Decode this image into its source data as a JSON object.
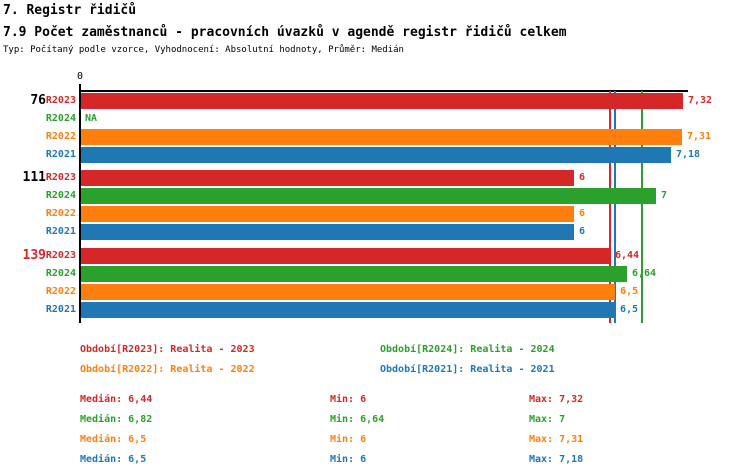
{
  "header": {
    "title": "7. Registr řidičů",
    "subtitle": "7.9 Počet zaměstnanců - pracovních úvazků v agendě registr řidičů celkem",
    "meta": "Typ: Počítaný podle vzorce, Vyhodnocení: Absolutní hodnoty, Průměr: Medián"
  },
  "chart_data": {
    "type": "bar",
    "orientation": "horizontal",
    "title": "7.9 Počet zaměstnanců - pracovních úvazků v agendě registr řidičů celkem",
    "axis_tick": "0",
    "xlim": [
      0,
      7.39
    ],
    "grid": false,
    "series_colors": {
      "R2023": "#d62728",
      "R2024": "#2ca02c",
      "R2022": "#ff7f0e",
      "R2021": "#1f77b4"
    },
    "groups": [
      {
        "label": "76",
        "label_color": "#000000",
        "bars": [
          {
            "series": "R2023",
            "value": 7.32,
            "display": "7,32"
          },
          {
            "series": "R2024",
            "value": null,
            "display": "NA"
          },
          {
            "series": "R2022",
            "value": 7.31,
            "display": "7,31"
          },
          {
            "series": "R2021",
            "value": 7.18,
            "display": "7,18"
          }
        ]
      },
      {
        "label": "111",
        "label_color": "#000000",
        "bars": [
          {
            "series": "R2023",
            "value": 6,
            "display": "6"
          },
          {
            "series": "R2024",
            "value": 7,
            "display": "7"
          },
          {
            "series": "R2022",
            "value": 6,
            "display": "6"
          },
          {
            "series": "R2021",
            "value": 6,
            "display": "6"
          }
        ]
      },
      {
        "label": "139",
        "label_color": "#d62728",
        "bars": [
          {
            "series": "R2023",
            "value": 6.44,
            "display": "6,44"
          },
          {
            "series": "R2024",
            "value": 6.64,
            "display": "6,64"
          },
          {
            "series": "R2022",
            "value": 6.5,
            "display": "6,5"
          },
          {
            "series": "R2021",
            "value": 6.5,
            "display": "6,5"
          }
        ]
      }
    ],
    "reference_lines": [
      {
        "name": "median-R2023",
        "value": 6.44,
        "color": "#d62728"
      },
      {
        "name": "median-R2022",
        "value": 6.5,
        "color": "#ff7f0e"
      },
      {
        "name": "median-R2021",
        "value": 6.5,
        "color": "#1f77b4"
      },
      {
        "name": "median-R2024",
        "value": 6.82,
        "color": "#2ca02c"
      }
    ]
  },
  "legend": [
    {
      "label": "Období[R2023]: Realita - 2023",
      "color": "#d62728"
    },
    {
      "label": "Období[R2024]: Realita - 2024",
      "color": "#2ca02c"
    },
    {
      "label": "Období[R2022]: Realita - 2022",
      "color": "#ff7f0e"
    },
    {
      "label": "Období[R2021]: Realita - 2021",
      "color": "#1f77b4"
    }
  ],
  "stats": [
    {
      "color": "#d62728",
      "median": "Medián: 6,44",
      "min": "Min: 6",
      "max": "Max: 7,32"
    },
    {
      "color": "#2ca02c",
      "median": "Medián: 6,82",
      "min": "Min: 6,64",
      "max": "Max: 7"
    },
    {
      "color": "#ff7f0e",
      "median": "Medián: 6,5",
      "min": "Min: 6",
      "max": "Max: 7,31"
    },
    {
      "color": "#1f77b4",
      "median": "Medián: 6,5",
      "min": "Min: 6",
      "max": "Max: 7,18"
    }
  ]
}
